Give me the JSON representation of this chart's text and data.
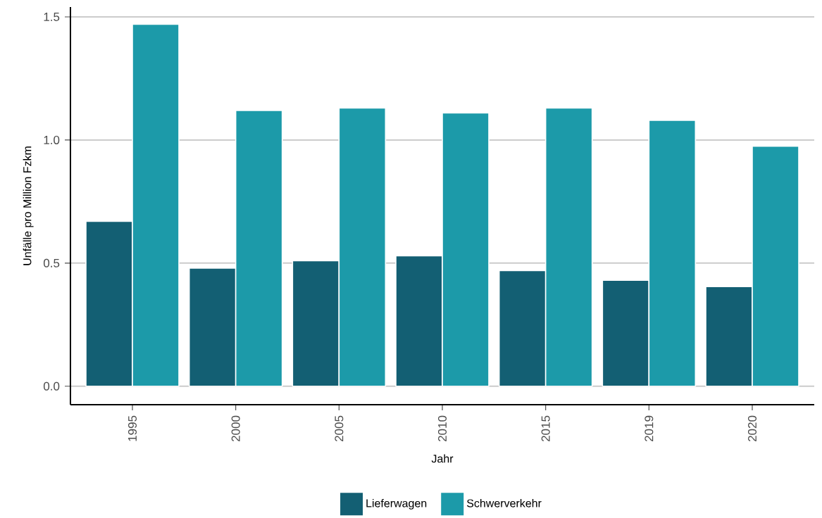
{
  "chart_data": {
    "type": "bar",
    "xlabel": "Jahr",
    "ylabel": "Unfälle pro Million Fzkm",
    "categories": [
      "1995",
      "2000",
      "2005",
      "2010",
      "2015",
      "2019",
      "2020"
    ],
    "series": [
      {
        "name": "Lieferwagen",
        "color": "#135f73",
        "values": [
          0.67,
          0.48,
          0.51,
          0.53,
          0.47,
          0.43,
          0.405
        ]
      },
      {
        "name": "Schwerverkehr",
        "color": "#1c9aa9",
        "values": [
          1.47,
          1.12,
          1.13,
          1.11,
          1.13,
          1.08,
          0.975
        ]
      }
    ],
    "ylim": [
      -0.075,
      1.54
    ],
    "yticks": [
      {
        "value": 0,
        "label": "0.0"
      },
      0.5,
      {
        "value": 1,
        "label": "1.0"
      },
      1.5
    ],
    "grid": "y",
    "legend": "bottom"
  }
}
